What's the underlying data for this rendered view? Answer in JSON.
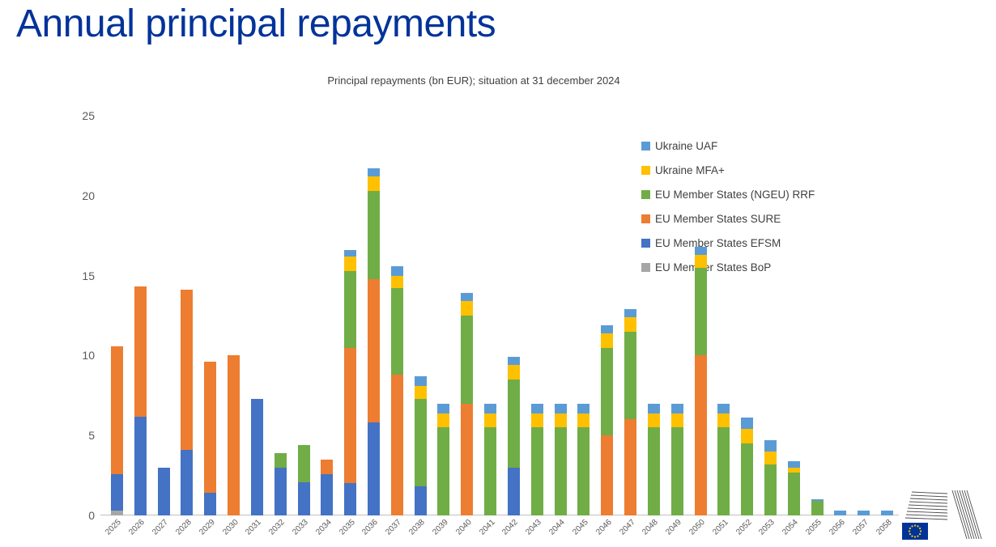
{
  "page_title": "Annual principal repayments",
  "colors": {
    "title": "#003399",
    "axis_text": "#595959",
    "flag_blue": "#003399",
    "star_yellow": "#FFCC00"
  },
  "chart_data": {
    "type": "bar",
    "stacked": true,
    "stack_order": "bottom-to-top",
    "title": "Principal repayments (bn EUR); situation at 31 december 2024",
    "ylim": [
      0,
      25
    ],
    "yticks": [
      0,
      5,
      10,
      15,
      20,
      25
    ],
    "grid": false,
    "legend_position": "inside-top-right",
    "categories": [
      "2025",
      "2026",
      "2027",
      "2028",
      "2029",
      "2030",
      "2031",
      "2032",
      "2033",
      "2034",
      "2035",
      "2036",
      "2037",
      "2038",
      "2039",
      "2040",
      "2041",
      "2042",
      "2043",
      "2044",
      "2045",
      "2046",
      "2047",
      "2048",
      "2049",
      "2050",
      "2051",
      "2052",
      "2053",
      "2054",
      "2055",
      "2056",
      "2057",
      "2058"
    ],
    "series": [
      {
        "name": "EU Member States BoP",
        "color": "#A6A6A6",
        "values": [
          0.3,
          0,
          0,
          0,
          0,
          0,
          0,
          0,
          0,
          0,
          0,
          0,
          0,
          0,
          0,
          0,
          0,
          0,
          0,
          0,
          0,
          0,
          0,
          0,
          0,
          0,
          0,
          0,
          0,
          0,
          0,
          0,
          0,
          0
        ]
      },
      {
        "name": "EU Member States EFSM",
        "color": "#4472C4",
        "values": [
          2.3,
          6.2,
          3.0,
          4.1,
          1.4,
          0,
          7.3,
          3.0,
          2.1,
          2.6,
          2.0,
          5.8,
          0,
          1.8,
          0,
          0,
          0,
          3.0,
          0,
          0,
          0,
          0,
          0,
          0,
          0,
          0,
          0,
          0,
          0,
          0,
          0,
          0,
          0,
          0
        ]
      },
      {
        "name": "EU Member States SURE",
        "color": "#ED7D31",
        "values": [
          8.0,
          8.1,
          0,
          10.0,
          8.2,
          10.0,
          0,
          0,
          0,
          0.9,
          8.5,
          9.0,
          8.8,
          0,
          0,
          7.0,
          0,
          0,
          0,
          0,
          0,
          5.0,
          6.0,
          0,
          0,
          10.0,
          0,
          0,
          0,
          0,
          0,
          0,
          0,
          0
        ]
      },
      {
        "name": "EU Member States (NGEU) RRF",
        "color": "#70AD47",
        "values": [
          0,
          0,
          0,
          0,
          0,
          0,
          0,
          0.9,
          2.3,
          0,
          4.8,
          5.5,
          5.4,
          5.5,
          5.5,
          5.5,
          5.5,
          5.5,
          5.5,
          5.5,
          5.5,
          5.5,
          5.5,
          5.5,
          5.5,
          5.5,
          5.5,
          4.5,
          3.2,
          2.7,
          0.9,
          0,
          0,
          0
        ]
      },
      {
        "name": "Ukraine MFA+",
        "color": "#FFC000",
        "values": [
          0,
          0,
          0,
          0,
          0,
          0,
          0,
          0,
          0,
          0,
          0.9,
          0.9,
          0.8,
          0.8,
          0.9,
          0.9,
          0.9,
          0.9,
          0.9,
          0.9,
          0.9,
          0.9,
          0.9,
          0.9,
          0.9,
          0.8,
          0.9,
          0.9,
          0.8,
          0.3,
          0,
          0,
          0,
          0
        ]
      },
      {
        "name": "Ukraine UAF",
        "color": "#5B9BD5",
        "values": [
          0,
          0,
          0,
          0,
          0,
          0,
          0,
          0,
          0,
          0,
          0.4,
          0.5,
          0.6,
          0.6,
          0.6,
          0.5,
          0.6,
          0.5,
          0.6,
          0.6,
          0.6,
          0.5,
          0.5,
          0.6,
          0.6,
          0.5,
          0.6,
          0.7,
          0.7,
          0.4,
          0.1,
          0.3,
          0.3,
          0.3
        ]
      }
    ]
  }
}
